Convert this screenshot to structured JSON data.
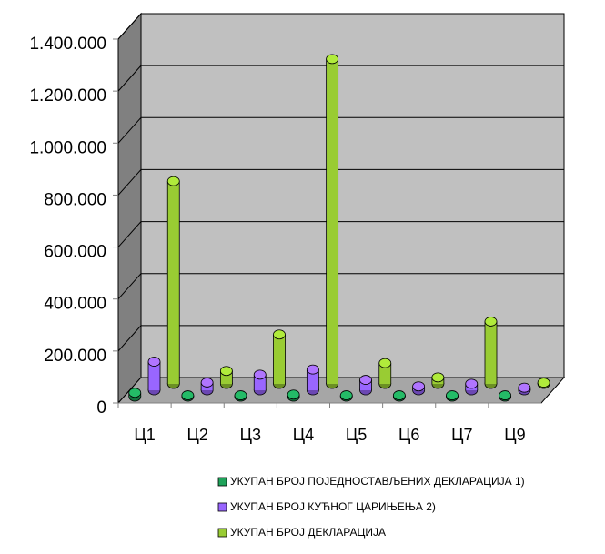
{
  "chart_data": {
    "type": "bar",
    "categories": [
      "Ц1",
      "Ц2",
      "Ц3",
      "Ц4",
      "Ц5",
      "Ц6",
      "Ц7",
      "Ц9"
    ],
    "series": [
      {
        "name": "УКУПАН БРОЈ ПОЈЕДНОСТАВЉЕНИХ ДЕКЛАРАЦИЈА  1)",
        "color": "#1fa35a",
        "values": [
          15000,
          5000,
          5000,
          8000,
          5000,
          5000,
          5000,
          5000
        ]
      },
      {
        "name": "УКУПАН БРОЈ КУЋНОГ ЦАРИЊЕЊА  2)",
        "color": "#9966ff",
        "values": [
          110000,
          30000,
          60000,
          80000,
          40000,
          15000,
          25000,
          10000
        ]
      },
      {
        "name": "УКУПАН БРОЈ ДЕКЛАРАЦИЈА",
        "color": "#99cc33",
        "values": [
          780000,
          50000,
          190000,
          1250000,
          80000,
          25000,
          240000,
          5000
        ]
      }
    ],
    "ylim": [
      0,
      1400000
    ],
    "yticks": [
      0,
      {
        "value": 200000,
        "label": "200.000"
      },
      {
        "value": 400000,
        "label": "400.000"
      },
      {
        "value": 600000,
        "label": "600.000"
      },
      {
        "value": 800000,
        "label": "800.000"
      },
      {
        "value": 1000000,
        "label": "1.000.000"
      },
      {
        "value": 1200000,
        "label": "1.200.000"
      },
      {
        "value": 1400000,
        "label": "1.400.000"
      }
    ],
    "grid": true,
    "legend": "bottom"
  }
}
